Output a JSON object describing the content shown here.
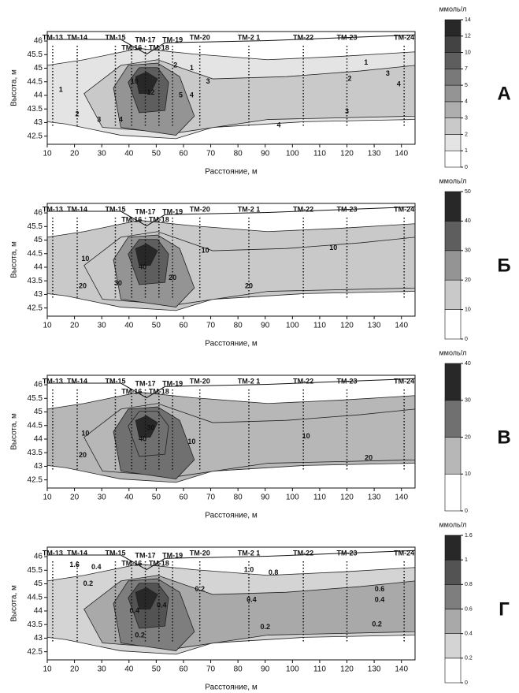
{
  "chart_data": [
    {
      "type": "contour",
      "panel_label": "А",
      "xlabel": "Расстояние, м",
      "ylabel": "Высота, м",
      "xlim": [
        10,
        145
      ],
      "ylim": [
        42.2,
        46.35
      ],
      "xticks": [
        10,
        20,
        30,
        40,
        50,
        60,
        70,
        80,
        90,
        100,
        110,
        120,
        130,
        140
      ],
      "yticks": [
        42.5,
        43,
        43.5,
        44,
        44.5,
        45,
        45.5,
        46
      ],
      "wells": [
        {
          "name": "ТМ-13",
          "x": 12
        },
        {
          "name": "ТМ-14",
          "x": 21
        },
        {
          "name": "ТМ-15",
          "x": 35
        },
        {
          "name": "ТМ-16",
          "x": 41
        },
        {
          "name": "ТМ-17",
          "x": 46
        },
        {
          "name": "ТМ-18",
          "x": 51
        },
        {
          "name": "ТМ-19",
          "x": 56
        },
        {
          "name": "ТМ-20",
          "x": 66
        },
        {
          "name": "ТМ-2 1",
          "x": 84
        },
        {
          "name": "ТМ-22",
          "x": 104
        },
        {
          "name": "ТМ-23",
          "x": 120
        },
        {
          "name": "ТМ-24",
          "x": 141
        }
      ],
      "colorbar": {
        "unit": "ммоль/л",
        "levels": [
          0,
          1,
          2,
          3,
          4,
          5,
          7,
          10,
          12,
          14
        ]
      },
      "contour_labels": [
        {
          "value": 1,
          "x": 15,
          "y": 44.2
        },
        {
          "value": 2,
          "x": 21,
          "y": 43.3
        },
        {
          "value": 3,
          "x": 29,
          "y": 43.1
        },
        {
          "value": 4,
          "x": 37,
          "y": 43.1
        },
        {
          "value": 12,
          "x": 48,
          "y": 44.1
        },
        {
          "value": 10,
          "x": 42,
          "y": 44.5
        },
        {
          "value": 5,
          "x": 59,
          "y": 44
        },
        {
          "value": 4,
          "x": 63,
          "y": 44
        },
        {
          "value": 3,
          "x": 69,
          "y": 44.5
        },
        {
          "value": 2,
          "x": 57,
          "y": 45.1
        },
        {
          "value": 1,
          "x": 63,
          "y": 45
        },
        {
          "value": 1,
          "x": 127,
          "y": 45.2
        },
        {
          "value": 2,
          "x": 121,
          "y": 44.6
        },
        {
          "value": 3,
          "x": 135,
          "y": 44.8
        },
        {
          "value": 4,
          "x": 139,
          "y": 44.4
        },
        {
          "value": 3,
          "x": 120,
          "y": 43.4
        },
        {
          "value": 4,
          "x": 95,
          "y": 42.9
        }
      ]
    },
    {
      "type": "contour",
      "panel_label": "Б",
      "xlabel": "Расстояние, м",
      "ylabel": "Высота, м",
      "xlim": [
        10,
        145
      ],
      "ylim": [
        42.2,
        46.35
      ],
      "xticks": [
        10,
        20,
        30,
        40,
        50,
        60,
        70,
        80,
        90,
        100,
        110,
        120,
        130,
        140
      ],
      "yticks": [
        42.5,
        43,
        43.5,
        44,
        44.5,
        45,
        45.5,
        46
      ],
      "wells": [
        {
          "name": "ТМ-13",
          "x": 12
        },
        {
          "name": "ТМ-14",
          "x": 21
        },
        {
          "name": "ТМ-15",
          "x": 35
        },
        {
          "name": "ТМ-16",
          "x": 41
        },
        {
          "name": "ТМ-17",
          "x": 46
        },
        {
          "name": "ТМ-18",
          "x": 51
        },
        {
          "name": "ТМ-19",
          "x": 56
        },
        {
          "name": "ТМ-20",
          "x": 66
        },
        {
          "name": "ТМ-2 1",
          "x": 84
        },
        {
          "name": "ТМ-22",
          "x": 104
        },
        {
          "name": "ТМ-23",
          "x": 120
        },
        {
          "name": "ТМ-24",
          "x": 141
        }
      ],
      "colorbar": {
        "unit": "ммоль/л",
        "levels": [
          0,
          10,
          20,
          30,
          40,
          50
        ]
      },
      "contour_labels": [
        {
          "value": 10,
          "x": 24,
          "y": 44.3
        },
        {
          "value": 20,
          "x": 23,
          "y": 43.3
        },
        {
          "value": 30,
          "x": 36,
          "y": 43.4
        },
        {
          "value": 40,
          "x": 45,
          "y": 44
        },
        {
          "value": 20,
          "x": 56,
          "y": 43.6
        },
        {
          "value": 10,
          "x": 68,
          "y": 44.6
        },
        {
          "value": 10,
          "x": 115,
          "y": 44.7
        },
        {
          "value": 20,
          "x": 84,
          "y": 43.3
        }
      ]
    },
    {
      "type": "contour",
      "panel_label": "В",
      "xlabel": "Расстояние, м",
      "ylabel": "Высота, м",
      "xlim": [
        10,
        145
      ],
      "ylim": [
        42.2,
        46.35
      ],
      "xticks": [
        10,
        20,
        30,
        40,
        50,
        60,
        70,
        80,
        90,
        100,
        110,
        120,
        130,
        140
      ],
      "yticks": [
        42.5,
        43,
        43.5,
        44,
        44.5,
        45,
        45.5,
        46
      ],
      "wells": [
        {
          "name": "ТМ-13",
          "x": 12
        },
        {
          "name": "ТМ-14",
          "x": 21
        },
        {
          "name": "ТМ-15",
          "x": 35
        },
        {
          "name": "ТМ-16",
          "x": 41
        },
        {
          "name": "ТМ-17",
          "x": 46
        },
        {
          "name": "ТМ-18",
          "x": 51
        },
        {
          "name": "ТМ-19",
          "x": 56
        },
        {
          "name": "ТМ-20",
          "x": 66
        },
        {
          "name": "ТМ-2 1",
          "x": 84
        },
        {
          "name": "ТМ-22",
          "x": 104
        },
        {
          "name": "ТМ-23",
          "x": 120
        },
        {
          "name": "ТМ-24",
          "x": 141
        }
      ],
      "colorbar": {
        "unit": "ммоль/л",
        "levels": [
          0,
          10,
          20,
          30,
          40
        ]
      },
      "contour_labels": [
        {
          "value": 10,
          "x": 24,
          "y": 44.2
        },
        {
          "value": 20,
          "x": 23,
          "y": 43.4
        },
        {
          "value": 30,
          "x": 48,
          "y": 44.4
        },
        {
          "value": 40,
          "x": 45,
          "y": 44
        },
        {
          "value": 10,
          "x": 63,
          "y": 43.9
        },
        {
          "value": 10,
          "x": 105,
          "y": 44.1
        },
        {
          "value": 20,
          "x": 128,
          "y": 43.3
        }
      ]
    },
    {
      "type": "contour",
      "panel_label": "Г",
      "xlabel": "Расстояние, м",
      "ylabel": "Высота, м",
      "xlim": [
        10,
        145
      ],
      "ylim": [
        42.2,
        46.35
      ],
      "xticks": [
        10,
        20,
        30,
        40,
        50,
        60,
        70,
        80,
        90,
        100,
        110,
        120,
        130,
        140
      ],
      "yticks": [
        42.5,
        43,
        43.5,
        44,
        44.5,
        45,
        45.5,
        46
      ],
      "wells": [
        {
          "name": "ТМ-13",
          "x": 12
        },
        {
          "name": "ТМ-14",
          "x": 21
        },
        {
          "name": "ТМ-15",
          "x": 35
        },
        {
          "name": "ТМ-16",
          "x": 41
        },
        {
          "name": "ТМ-17",
          "x": 46
        },
        {
          "name": "ТМ-18",
          "x": 51
        },
        {
          "name": "ТМ-19",
          "x": 56
        },
        {
          "name": "ТМ-20",
          "x": 66
        },
        {
          "name": "ТМ-2 1",
          "x": 84
        },
        {
          "name": "ТМ-22",
          "x": 104
        },
        {
          "name": "ТМ-23",
          "x": 120
        },
        {
          "name": "ТМ-24",
          "x": 141
        }
      ],
      "colorbar": {
        "unit": "ммоль/л",
        "levels": [
          0,
          0.2,
          0.4,
          0.6,
          0.8,
          1,
          1.6
        ]
      },
      "contour_labels": [
        {
          "value": 1.6,
          "x": 20,
          "y": 45.7
        },
        {
          "value": 0.4,
          "x": 28,
          "y": 45.6
        },
        {
          "value": 0.2,
          "x": 25,
          "y": 45
        },
        {
          "value": 0.4,
          "x": 42,
          "y": 44
        },
        {
          "value": 0.4,
          "x": 52,
          "y": 44.2
        },
        {
          "value": 0.2,
          "x": 44,
          "y": 43.1
        },
        {
          "value": 0.2,
          "x": 66,
          "y": 44.8
        },
        {
          "value": 0.4,
          "x": 85,
          "y": 44.4
        },
        {
          "value": 1,
          "label": "1.0",
          "x": 84,
          "y": 45.5
        },
        {
          "value": 0.8,
          "x": 93,
          "y": 45.4
        },
        {
          "value": 0.2,
          "x": 90,
          "y": 43.4
        },
        {
          "value": 0.2,
          "x": 131,
          "y": 43.5
        },
        {
          "value": 0.4,
          "x": 132,
          "y": 44.4
        },
        {
          "value": 0.6,
          "x": 132,
          "y": 44.8
        }
      ]
    }
  ]
}
